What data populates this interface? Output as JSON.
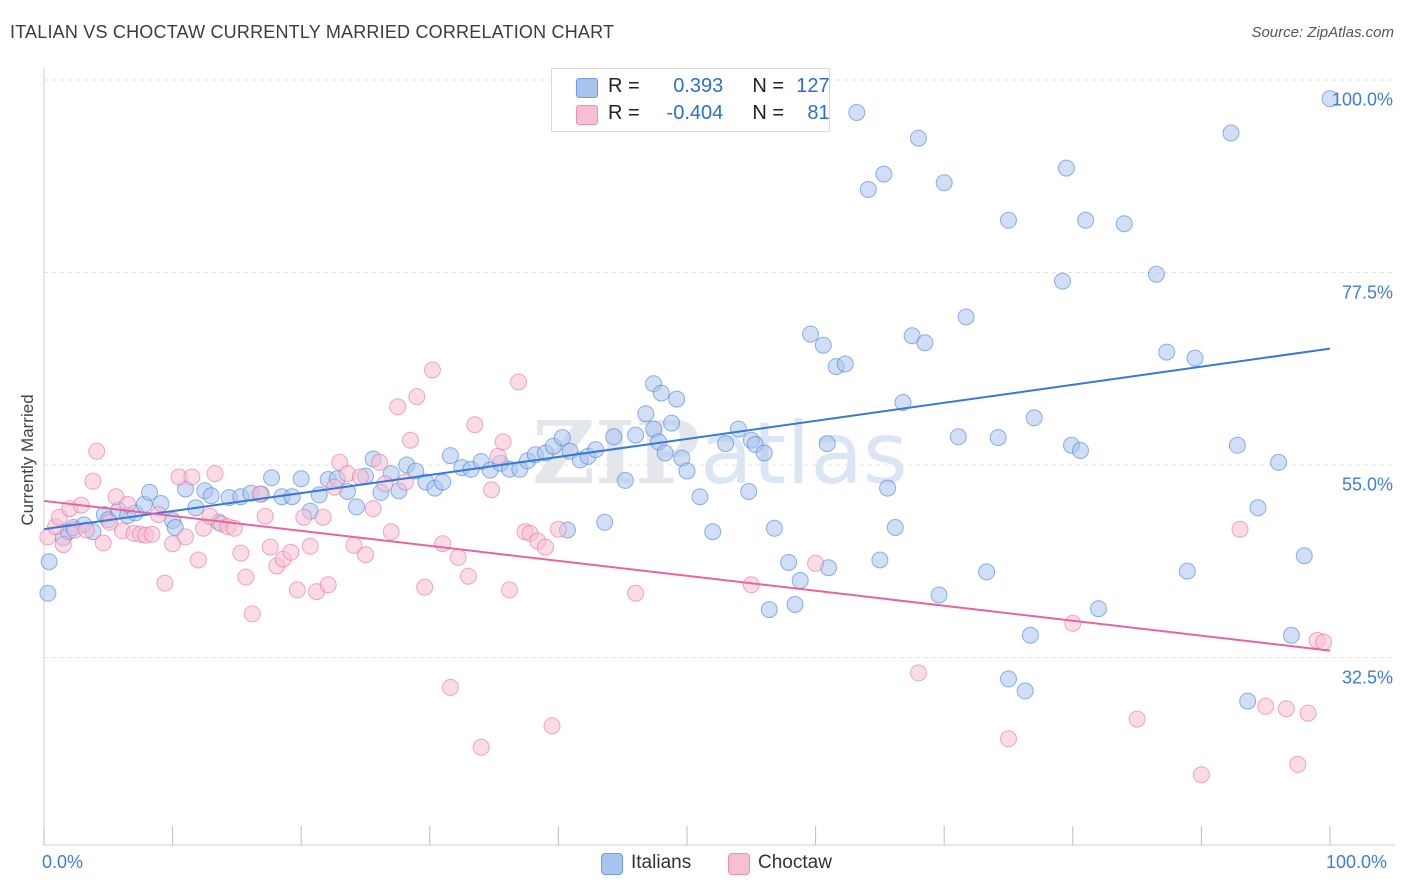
{
  "title": "ITALIAN VS CHOCTAW CURRENTLY MARRIED CORRELATION CHART",
  "source": "Source: ZipAtlas.com",
  "watermark": "ZIPatlas",
  "legend": {
    "rows": [
      {
        "r_label": "R =",
        "r_value": "0.393",
        "n_label": "N =",
        "n_value": "127",
        "color": "#a9c4ec",
        "border": "#6f9fe0"
      },
      {
        "r_label": "R =",
        "r_value": "-0.404",
        "n_label": "N =",
        "n_value": "81",
        "color": "#f7bfd2",
        "border": "#ec8fb0"
      }
    ]
  },
  "chart_data": {
    "type": "scatter",
    "title": "ITALIAN VS CHOCTAW CURRENTLY MARRIED CORRELATION CHART",
    "xlabel": "",
    "ylabel": "Currently Married",
    "xlim": [
      0,
      100
    ],
    "ylim": [
      15,
      100
    ],
    "x_tick_labels": [
      "0.0%",
      "100.0%"
    ],
    "y_tick_labels": [
      "100.0%",
      "77.5%",
      "55.0%",
      "32.5%"
    ],
    "y_ticks": [
      100,
      77.5,
      55,
      32.5
    ],
    "grid": true,
    "legend_placement": "bottom-center",
    "series": [
      {
        "name": "Italians",
        "color": "#3a78d8",
        "fill": "#a9c4ec",
        "trend": {
          "x": [
            0,
            100
          ],
          "y": [
            47.5,
            68.6
          ]
        },
        "points": [
          [
            0.3,
            40.0
          ],
          [
            0.4,
            43.7
          ],
          [
            1.5,
            46.5
          ],
          [
            1.9,
            47.2
          ],
          [
            2.3,
            47.7
          ],
          [
            3.1,
            48.0
          ],
          [
            3.8,
            47.2
          ],
          [
            4.7,
            49.2
          ],
          [
            5.0,
            48.6
          ],
          [
            5.8,
            49.7
          ],
          [
            6.5,
            49.1
          ],
          [
            7.1,
            49.4
          ],
          [
            7.8,
            50.4
          ],
          [
            8.2,
            51.8
          ],
          [
            9.1,
            50.5
          ],
          [
            10.0,
            48.5
          ],
          [
            10.2,
            47.7
          ],
          [
            11.0,
            52.2
          ],
          [
            11.8,
            50.0
          ],
          [
            12.5,
            52.0
          ],
          [
            13.0,
            51.4
          ],
          [
            13.6,
            48.3
          ],
          [
            14.4,
            51.2
          ],
          [
            15.3,
            51.3
          ],
          [
            16.1,
            51.7
          ],
          [
            16.9,
            51.6
          ],
          [
            17.7,
            53.5
          ],
          [
            18.5,
            51.3
          ],
          [
            19.3,
            51.3
          ],
          [
            20.0,
            53.4
          ],
          [
            20.7,
            49.6
          ],
          [
            21.4,
            51.5
          ],
          [
            22.1,
            53.3
          ],
          [
            22.8,
            53.4
          ],
          [
            23.6,
            51.9
          ],
          [
            24.3,
            50.1
          ],
          [
            25.0,
            53.7
          ],
          [
            25.6,
            55.7
          ],
          [
            26.2,
            51.8
          ],
          [
            27.0,
            54.0
          ],
          [
            27.6,
            52.0
          ],
          [
            28.2,
            55.0
          ],
          [
            28.9,
            54.3
          ],
          [
            29.7,
            53.0
          ],
          [
            30.4,
            52.3
          ],
          [
            31.0,
            53.0
          ],
          [
            31.6,
            56.1
          ],
          [
            32.5,
            54.7
          ],
          [
            33.2,
            54.5
          ],
          [
            34.0,
            55.4
          ],
          [
            34.7,
            54.4
          ],
          [
            35.5,
            55.2
          ],
          [
            36.2,
            54.5
          ],
          [
            37.0,
            54.5
          ],
          [
            37.6,
            55.5
          ],
          [
            38.2,
            56.2
          ],
          [
            39.0,
            56.4
          ],
          [
            39.6,
            57.2
          ],
          [
            40.3,
            58.2
          ],
          [
            40.9,
            56.6
          ],
          [
            41.7,
            55.6
          ],
          [
            42.3,
            56.0
          ],
          [
            42.9,
            56.8
          ],
          [
            43.6,
            48.3
          ],
          [
            44.3,
            58.3
          ],
          [
            45.2,
            53.2
          ],
          [
            46.0,
            58.5
          ],
          [
            46.8,
            61.0
          ],
          [
            47.4,
            59.2
          ],
          [
            47.8,
            57.7
          ],
          [
            48.3,
            56.4
          ],
          [
            49.6,
            55.8
          ],
          [
            50.0,
            54.3
          ],
          [
            51.0,
            51.3
          ],
          [
            52.0,
            47.2
          ],
          [
            53.0,
            57.5
          ],
          [
            54.0,
            59.2
          ],
          [
            55.0,
            57.9
          ],
          [
            55.3,
            57.4
          ],
          [
            56.0,
            56.4
          ],
          [
            56.4,
            38.1
          ],
          [
            56.8,
            47.6
          ],
          [
            57.9,
            43.6
          ],
          [
            58.4,
            38.7
          ],
          [
            59.6,
            70.3
          ],
          [
            60.6,
            69.0
          ],
          [
            60.9,
            57.5
          ],
          [
            61.0,
            43.0
          ],
          [
            61.6,
            66.5
          ],
          [
            62.3,
            66.8
          ],
          [
            63.2,
            96.2
          ],
          [
            64.1,
            87.2
          ],
          [
            65.0,
            43.9
          ],
          [
            65.3,
            89.0
          ],
          [
            65.6,
            52.3
          ],
          [
            66.2,
            47.7
          ],
          [
            66.8,
            62.3
          ],
          [
            67.5,
            70.1
          ],
          [
            68.0,
            93.2
          ],
          [
            68.5,
            69.3
          ],
          [
            69.6,
            39.8
          ],
          [
            70.0,
            88.0
          ],
          [
            71.1,
            58.3
          ],
          [
            71.7,
            72.3
          ],
          [
            73.3,
            42.5
          ],
          [
            74.2,
            58.2
          ],
          [
            75.0,
            83.6
          ],
          [
            76.3,
            28.6
          ],
          [
            76.7,
            35.1
          ],
          [
            77.0,
            60.5
          ],
          [
            79.2,
            76.5
          ],
          [
            79.5,
            89.7
          ],
          [
            79.9,
            57.3
          ],
          [
            80.6,
            56.7
          ],
          [
            81.0,
            83.6
          ],
          [
            82.0,
            38.2
          ],
          [
            84.0,
            83.2
          ],
          [
            86.5,
            77.3
          ],
          [
            87.3,
            68.2
          ],
          [
            88.9,
            42.6
          ],
          [
            89.5,
            67.5
          ],
          [
            92.3,
            93.8
          ],
          [
            92.8,
            57.3
          ],
          [
            93.6,
            27.4
          ],
          [
            94.4,
            50.0
          ],
          [
            96.0,
            55.3
          ],
          [
            97.0,
            35.1
          ],
          [
            98.0,
            44.4
          ],
          [
            100.0,
            97.8
          ],
          [
            75.0,
            30.0
          ],
          [
            58.8,
            41.5
          ],
          [
            54.8,
            51.9
          ],
          [
            47.4,
            64.5
          ],
          [
            48.0,
            63.4
          ],
          [
            49.2,
            62.7
          ],
          [
            40.7,
            47.4
          ],
          [
            48.8,
            59.9
          ]
        ]
      },
      {
        "name": "Choctaw",
        "color": "#e8659a",
        "fill": "#f7bfd2",
        "trend": {
          "x": [
            0,
            100
          ],
          "y": [
            50.8,
            33.3
          ]
        },
        "points": [
          [
            0.3,
            46.6
          ],
          [
            0.9,
            47.8
          ],
          [
            1.2,
            48.9
          ],
          [
            1.5,
            45.7
          ],
          [
            2.0,
            49.9
          ],
          [
            2.4,
            47.4
          ],
          [
            2.9,
            50.3
          ],
          [
            3.3,
            47.4
          ],
          [
            3.8,
            53.1
          ],
          [
            4.1,
            56.6
          ],
          [
            4.6,
            45.9
          ],
          [
            5.1,
            48.3
          ],
          [
            5.6,
            51.3
          ],
          [
            6.1,
            47.3
          ],
          [
            6.5,
            50.4
          ],
          [
            7.0,
            47.0
          ],
          [
            7.5,
            46.9
          ],
          [
            7.9,
            46.8
          ],
          [
            8.4,
            46.9
          ],
          [
            8.9,
            49.2
          ],
          [
            9.4,
            41.2
          ],
          [
            10.0,
            45.8
          ],
          [
            10.5,
            53.6
          ],
          [
            11.0,
            46.6
          ],
          [
            11.5,
            53.6
          ],
          [
            12.0,
            43.9
          ],
          [
            12.4,
            47.6
          ],
          [
            12.9,
            49.0
          ],
          [
            13.3,
            54.0
          ],
          [
            13.8,
            48.1
          ],
          [
            14.3,
            47.8
          ],
          [
            14.8,
            47.6
          ],
          [
            15.3,
            44.7
          ],
          [
            15.7,
            41.9
          ],
          [
            16.2,
            37.6
          ],
          [
            16.8,
            51.6
          ],
          [
            17.2,
            49.0
          ],
          [
            17.6,
            45.4
          ],
          [
            18.1,
            43.2
          ],
          [
            18.6,
            44.0
          ],
          [
            19.2,
            44.8
          ],
          [
            19.7,
            40.4
          ],
          [
            20.2,
            48.9
          ],
          [
            20.7,
            45.5
          ],
          [
            21.2,
            40.2
          ],
          [
            21.7,
            48.9
          ],
          [
            22.1,
            41.0
          ],
          [
            22.6,
            52.4
          ],
          [
            23.0,
            55.3
          ],
          [
            23.6,
            54.0
          ],
          [
            24.1,
            45.6
          ],
          [
            24.6,
            53.6
          ],
          [
            25.0,
            44.5
          ],
          [
            25.6,
            49.9
          ],
          [
            26.1,
            55.3
          ],
          [
            26.5,
            52.8
          ],
          [
            27.0,
            47.2
          ],
          [
            27.5,
            61.8
          ],
          [
            28.1,
            53.0
          ],
          [
            28.5,
            57.9
          ],
          [
            29.0,
            63.0
          ],
          [
            29.6,
            40.7
          ],
          [
            30.2,
            66.1
          ],
          [
            31.0,
            45.8
          ],
          [
            31.6,
            29.0
          ],
          [
            32.2,
            44.2
          ],
          [
            33.0,
            42.0
          ],
          [
            33.5,
            59.7
          ],
          [
            34.0,
            22.0
          ],
          [
            34.8,
            52.1
          ],
          [
            35.3,
            56.0
          ],
          [
            35.7,
            57.7
          ],
          [
            36.2,
            40.4
          ],
          [
            36.9,
            64.7
          ],
          [
            37.4,
            47.2
          ],
          [
            37.8,
            47.0
          ],
          [
            38.4,
            46.1
          ],
          [
            39.0,
            45.4
          ],
          [
            39.5,
            24.5
          ],
          [
            40.0,
            47.5
          ],
          [
            46.0,
            40.0
          ],
          [
            55.0,
            41.0
          ],
          [
            60.0,
            43.5
          ],
          [
            68.0,
            30.7
          ],
          [
            75.0,
            23.0
          ],
          [
            80.0,
            36.5
          ],
          [
            85.0,
            25.3
          ],
          [
            90.0,
            18.8
          ],
          [
            93.0,
            47.5
          ],
          [
            95.0,
            26.8
          ],
          [
            96.6,
            26.5
          ],
          [
            97.5,
            20.0
          ],
          [
            98.3,
            26.0
          ],
          [
            99.0,
            34.5
          ],
          [
            99.5,
            34.3
          ]
        ]
      }
    ]
  },
  "bottom_legend": [
    {
      "label": "Italians",
      "color": "#a9c4ec",
      "border": "#6f9fe0"
    },
    {
      "label": "Choctaw",
      "color": "#f7bfd2",
      "border": "#ec8fb0"
    }
  ]
}
